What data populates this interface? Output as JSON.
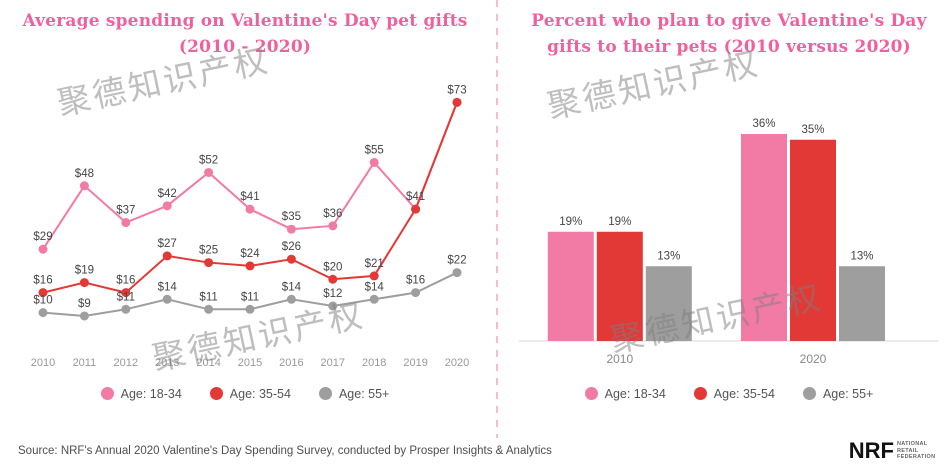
{
  "watermark": {
    "text": "聚德知识产权"
  },
  "colors": {
    "pink": "#F27BA6",
    "red": "#E23936",
    "gray": "#9E9E9E",
    "title_pink": "#F0609E"
  },
  "chart_data": [
    {
      "type": "line",
      "title": "Average spending on Valentine's Day pet gifts (2010 - 2020)",
      "title_lines": [
        "Average spending on Valentine's Day pet gifts",
        "(2010 - 2020)"
      ],
      "categories": [
        "2010",
        "2011",
        "2012",
        "2013",
        "2014",
        "2015",
        "2016",
        "2017",
        "2018",
        "2019",
        "2020"
      ],
      "series": [
        {
          "name": "Age: 18-34",
          "color": "#F27BA6",
          "values": [
            29,
            48,
            37,
            42,
            52,
            41,
            35,
            36,
            55,
            41,
            73
          ]
        },
        {
          "name": "Age: 35-54",
          "color": "#E23936",
          "values": [
            16,
            19,
            16,
            27,
            25,
            24,
            26,
            20,
            21,
            41,
            73
          ]
        },
        {
          "name": "Age: 55+",
          "color": "#9E9E9E",
          "values": [
            10,
            9,
            11,
            14,
            11,
            11,
            14,
            12,
            14,
            16,
            22
          ]
        }
      ],
      "label_format": "${v}",
      "ylim": [
        0,
        80
      ],
      "xlabel": "",
      "ylabel": "",
      "grid": false,
      "legend_position": "bottom"
    },
    {
      "type": "bar",
      "title": "Percent who plan to give Valentine's Day gifts to their pets (2010 versus 2020)",
      "title_lines": [
        "Percent who plan to give Valentine's Day",
        "gifts to their pets (2010 versus 2020)"
      ],
      "categories": [
        "2010",
        "2020"
      ],
      "series": [
        {
          "name": "Age: 18-34",
          "color": "#F27BA6",
          "values": [
            19,
            36
          ]
        },
        {
          "name": "Age: 35-54",
          "color": "#E23936",
          "values": [
            19,
            35
          ]
        },
        {
          "name": "Age: 55+",
          "color": "#9E9E9E",
          "values": [
            13,
            13
          ]
        }
      ],
      "label_format": "{v}%",
      "ylim": [
        0,
        40
      ],
      "xlabel": "",
      "ylabel": "",
      "grid": false,
      "legend_position": "bottom"
    }
  ],
  "legend": {
    "items": [
      {
        "label": "Age: 18-34",
        "color": "#F27BA6"
      },
      {
        "label": "Age: 35-54",
        "color": "#E23936"
      },
      {
        "label": "Age: 55+",
        "color": "#9E9E9E"
      }
    ]
  },
  "footer": {
    "source": "Source: NRF's Annual 2020 Valentine's Day Spending Survey, conducted by Prosper Insights & Analytics",
    "logo_text": "NRF",
    "logo_subtext": "National Retail Federation"
  }
}
